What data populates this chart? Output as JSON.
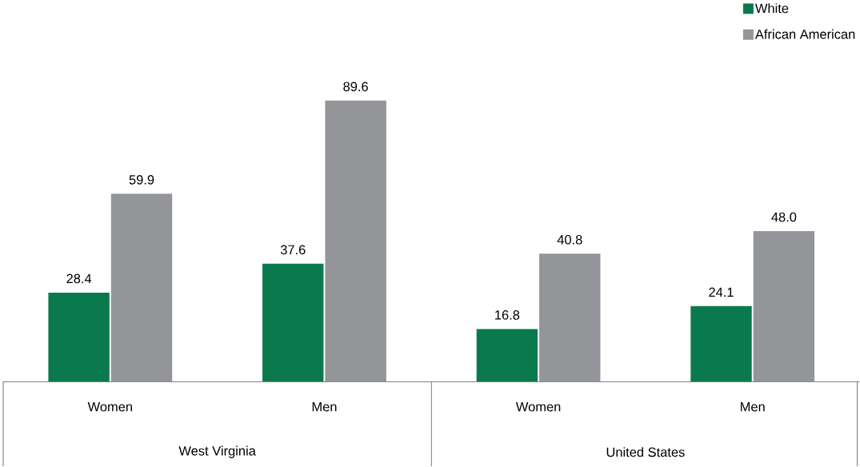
{
  "chart_data": {
    "type": "bar",
    "categories": [
      "Women",
      "Men",
      "Women",
      "Men"
    ],
    "series": [
      {
        "name": "White",
        "color": "#0a7a4e",
        "values": [
          28.4,
          37.6,
          16.8,
          24.1
        ],
        "value_labels": [
          "28.4",
          "37.6",
          "16.8",
          "24.1"
        ]
      },
      {
        "name": "African American",
        "color": "#939598",
        "values": [
          59.9,
          89.6,
          40.8,
          48.0
        ],
        "value_labels": [
          "59.9",
          "89.6",
          "40.8",
          "48.0"
        ]
      }
    ],
    "annotations": [
      "West Virginia",
      "United States"
    ],
    "legend": "top right"
  }
}
